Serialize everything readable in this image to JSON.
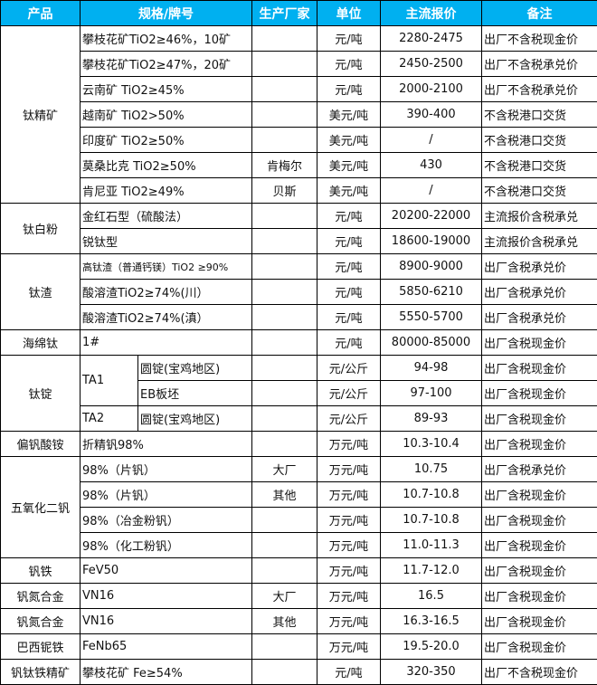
{
  "header": {
    "product": "产品",
    "spec": "规格/牌号",
    "maker": "生产厂家",
    "unit": "单位",
    "price": "主流报价",
    "note": "备注"
  },
  "header_color": "#00b0f0",
  "groups": [
    {
      "product": "钛精矿",
      "rows": [
        {
          "spec": "攀枝花矿TiO2≥46%，10矿",
          "maker": "",
          "unit": "元/吨",
          "price": "2280-2475",
          "note": "出厂不含税现金价"
        },
        {
          "spec": "攀枝花矿TiO2≥47%，20矿",
          "maker": "",
          "unit": "元/吨",
          "price": "2450-2500",
          "note": "出厂不含税承兑价"
        },
        {
          "spec": "云南矿 TiO2≥45%",
          "maker": "",
          "unit": "元/吨",
          "price": "2000-2100",
          "note": "出厂不含税承兑价"
        },
        {
          "spec": "越南矿 TiO2>50%",
          "maker": "",
          "unit": "美元/吨",
          "price": "390-400",
          "note": "不含税港口交货"
        },
        {
          "spec": "印度矿 TiO2≥50%",
          "maker": "",
          "unit": "美元/吨",
          "price": "/",
          "note": "不含税港口交货"
        },
        {
          "spec": "莫桑比克 TiO2≥50%",
          "maker": "肯梅尔",
          "unit": "美元/吨",
          "price": "430",
          "note": "不含税港口交货"
        },
        {
          "spec": "肯尼亚 TiO2≥49%",
          "maker": "贝斯",
          "unit": "美元/吨",
          "price": "/",
          "note": "不含税港口交货"
        }
      ]
    },
    {
      "product": "钛白粉",
      "rows": [
        {
          "spec": "金红石型（硫酸法）",
          "maker": "",
          "unit": "元/吨",
          "price": "20200-22000",
          "note": "主流报价含税承兑"
        },
        {
          "spec": "锐钛型",
          "maker": "",
          "unit": "元/吨",
          "price": "18600-19000",
          "note": "主流报价含税承兑"
        }
      ]
    },
    {
      "product": "钛渣",
      "rows": [
        {
          "spec": "高钛渣（普通钙镁）TiO2 ≥90%",
          "maker": "",
          "unit": "元/吨",
          "price": "8900-9000",
          "note": "出厂含税承兑价",
          "small": true
        },
        {
          "spec": "酸溶渣TiO2≥74%(川）",
          "maker": "",
          "unit": "元/吨",
          "price": "5850-6210",
          "note": "出厂含税承兑价"
        },
        {
          "spec": "酸溶渣TiO2≥74%(滇）",
          "maker": "",
          "unit": "元/吨",
          "price": "5550-5700",
          "note": "出厂含税承兑价"
        }
      ]
    },
    {
      "product": "海绵钛",
      "rows": [
        {
          "spec": "1#",
          "maker": "",
          "unit": "元/吨",
          "price": "80000-85000",
          "note": "出厂含税现金价"
        }
      ]
    },
    {
      "product": "钛锭",
      "rows": [
        {
          "grade": "TA1",
          "grade_span": 2,
          "sub": "圆锭(宝鸡地区)",
          "maker": "",
          "unit": "元/公斤",
          "price": "94-98",
          "note": "出厂含税现金价"
        },
        {
          "sub": "EB板坯",
          "maker": "",
          "unit": "元/公斤",
          "price": "97-100",
          "note": "出厂含税现金价"
        },
        {
          "grade": "TA2",
          "grade_span": 1,
          "sub": "圆锭(宝鸡地区)",
          "maker": "",
          "unit": "元/公斤",
          "price": "89-93",
          "note": "出厂含税现金价"
        }
      ]
    },
    {
      "product": "偏钒酸铵",
      "rows": [
        {
          "spec": "折精钒98%",
          "maker": "",
          "unit": "万元/吨",
          "price": "10.3-10.4",
          "note": "出厂含税现金价"
        }
      ]
    },
    {
      "product": "五氧化二钒",
      "rows": [
        {
          "spec": "98%（片钒）",
          "maker": "大厂",
          "unit": "万元/吨",
          "price": "10.75",
          "note": "出厂含税承兑价"
        },
        {
          "spec": "98%（片钒）",
          "maker": "其他",
          "unit": "万元/吨",
          "price": "10.7-10.8",
          "note": "出厂含税现金价"
        },
        {
          "spec": "98%（冶金粉钒）",
          "maker": "",
          "unit": "万元/吨",
          "price": "10.7-10.8",
          "note": "出厂含税现金价"
        },
        {
          "spec": "98%（化工粉钒）",
          "maker": "",
          "unit": "万元/吨",
          "price": "11.0-11.3",
          "note": "出厂含税现金价"
        }
      ]
    },
    {
      "product": "钒铁",
      "rows": [
        {
          "spec": "FeV50",
          "maker": "",
          "unit": "万元/吨",
          "price": "11.7-12.0",
          "note": "出厂含税现金价"
        }
      ]
    },
    {
      "product": "钒氮合金",
      "rows": [
        {
          "spec": "VN16",
          "maker": "大厂",
          "unit": "万元/吨",
          "price": "16.5",
          "note": "出厂含税现金价"
        }
      ]
    },
    {
      "product": "钒氮合金",
      "rows": [
        {
          "spec": "VN16",
          "maker": "其他",
          "unit": "万元/吨",
          "price": "16.3-16.5",
          "note": "出厂含税现金价"
        }
      ]
    },
    {
      "product": "巴西铌铁",
      "rows": [
        {
          "spec": "FeNb65",
          "maker": "",
          "unit": "万元/吨",
          "price": "19.5-20.0",
          "note": "出厂含税现金价"
        }
      ]
    },
    {
      "product": "钒钛铁精矿",
      "rows": [
        {
          "spec": "攀枝花矿 Fe≥54%",
          "maker": "",
          "unit": "元/吨",
          "price": "320-350",
          "note": "出厂不含税现金价"
        }
      ]
    }
  ]
}
